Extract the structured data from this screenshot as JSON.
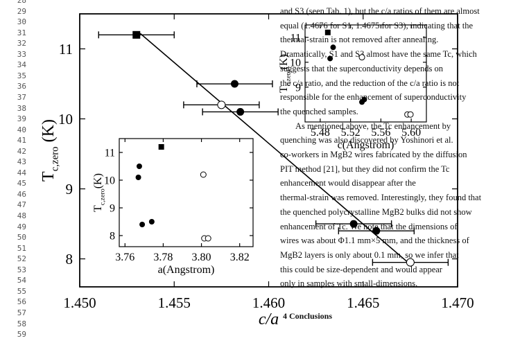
{
  "line_numbers": [
    "28",
    "29",
    "30",
    "31",
    "32",
    "33",
    "34",
    "35",
    "36",
    "37",
    "38",
    "39",
    "40",
    "41",
    "42",
    "43",
    "44",
    "45",
    "46",
    "47",
    "48",
    "49",
    "50",
    "51",
    "52",
    "53",
    "54",
    "55",
    "56",
    "57",
    "58",
    "59"
  ],
  "background_text": {
    "lines": [
      "and S3 (seen Tab. 1), but the c/a ratios of them are almost",
      "equal (1.4676 for S1, 1.4675 for S3), indicating that the",
      "thermal-strain is not removed after annealing.",
      "Dramatically, S1 and S3 almost have the same Tc, which",
      "suggests that the superconductivity depends on",
      "the c/a ratio, and the reduction of the c/a ratio is not",
      "responsible for the enhancement of superconductivity",
      "the quenched samples.",
      "As mentioned above, the Tc enhancement by",
      "quenching was also discovered by Yoshinori et al.",
      "co-workers in MgB2 wires fabricated by the diffusion",
      "PIT method [21], but they did not confirm the Tc",
      "enhancement would disappear after the",
      "thermal-strain was removed. Interestingly, they found that",
      "the quenched polycrystalline MgB2 bulks did not show",
      "enhancement of Tc. We note that the dimensions of",
      "wires was about Φ1.1 mm×5 mm, and the thickness of",
      "MgB2 layers is only about 0.1 mm, so we infer that",
      "this could be size-dependent and would appear",
      "only in samples with small-dimensions."
    ],
    "heading": "4 Conclusions"
  },
  "chart_data": [
    {
      "type": "scatter",
      "xlabel": "c/a",
      "ylabel": "T",
      "ylabel_sub": "c,zero",
      "ylabel_unit": " (K)",
      "xlim": [
        1.45,
        1.47
      ],
      "ylim": [
        7.6,
        11.5
      ],
      "xticks": [
        1.45,
        1.455,
        1.46,
        1.465,
        1.47
      ],
      "xtick_labels": [
        "1.450",
        "1.455",
        "1.460",
        "1.465",
        "1.470"
      ],
      "yticks": [
        8,
        9,
        10,
        11
      ],
      "ytick_labels": [
        "8",
        "9",
        "10",
        "11"
      ],
      "grid": false,
      "points": [
        {
          "x": 1.453,
          "y": 11.2,
          "xerr": 0.002,
          "marker": "square-filled"
        },
        {
          "x": 1.4582,
          "y": 10.5,
          "xerr": 0.002,
          "marker": "circle-filled"
        },
        {
          "x": 1.4575,
          "y": 10.2,
          "xerr": 0.002,
          "marker": "circle-open"
        },
        {
          "x": 1.4585,
          "y": 10.1,
          "xerr": 0.002,
          "marker": "circle-filled"
        },
        {
          "x": 1.4645,
          "y": 8.5,
          "xerr": 0.002,
          "marker": "circle-filled"
        },
        {
          "x": 1.4657,
          "y": 8.4,
          "xerr": 0.002,
          "marker": "circle-filled"
        },
        {
          "x": 1.4675,
          "y": 7.95,
          "xerr": 0.002,
          "marker": "circle-open"
        }
      ],
      "fit_line": {
        "x": [
          1.4532,
          1.4675
        ],
        "y": [
          11.22,
          7.92
        ]
      }
    },
    {
      "type": "scatter",
      "xlabel": "a(Angstrom)",
      "ylabel": "T",
      "ylabel_sub": "c,zero",
      "ylabel_unit": "(K)",
      "xlim": [
        3.757,
        3.827
      ],
      "ylim": [
        7.6,
        11.5
      ],
      "xticks": [
        3.76,
        3.78,
        3.8,
        3.82
      ],
      "xtick_labels": [
        "3.76",
        "3.78",
        "3.80",
        "3.82"
      ],
      "yticks": [
        8,
        9,
        10,
        11
      ],
      "ytick_labels": [
        "8",
        "9",
        "10",
        "11"
      ],
      "grid": false,
      "points": [
        {
          "x": 3.779,
          "y": 11.2,
          "marker": "square-filled"
        },
        {
          "x": 3.7675,
          "y": 10.5,
          "marker": "circle-filled"
        },
        {
          "x": 3.767,
          "y": 10.1,
          "marker": "circle-filled"
        },
        {
          "x": 3.801,
          "y": 10.2,
          "marker": "circle-open"
        },
        {
          "x": 3.769,
          "y": 8.4,
          "marker": "circle-filled"
        },
        {
          "x": 3.774,
          "y": 8.5,
          "marker": "circle-filled"
        },
        {
          "x": 3.8015,
          "y": 7.9,
          "marker": "circle-open"
        },
        {
          "x": 3.8035,
          "y": 7.9,
          "marker": "circle-open"
        }
      ]
    },
    {
      "type": "scatter",
      "xlabel": "c(Angstrom)",
      "ylabel": "T",
      "ylabel_sub": "c,zero",
      "ylabel_unit": "(K)",
      "xlim": [
        5.46,
        5.62
      ],
      "ylim": [
        7.6,
        11.5
      ],
      "xticks": [
        5.48,
        5.52,
        5.56,
        5.6
      ],
      "xtick_labels": [
        "5.48",
        "5.52",
        "5.56",
        "5.60"
      ],
      "yticks": [
        9,
        10,
        11
      ],
      "ytick_labels": [
        "9",
        "10",
        "11"
      ],
      "grid": false,
      "points": [
        {
          "x": 5.49,
          "y": 11.2,
          "marker": "square-filled"
        },
        {
          "x": 5.497,
          "y": 10.6,
          "marker": "circle-filled"
        },
        {
          "x": 5.493,
          "y": 10.15,
          "marker": "circle-filled"
        },
        {
          "x": 5.535,
          "y": 10.2,
          "marker": "circle-open"
        },
        {
          "x": 5.535,
          "y": 8.4,
          "marker": "circle-filled"
        },
        {
          "x": 5.538,
          "y": 8.5,
          "marker": "circle-filled"
        },
        {
          "x": 5.595,
          "y": 7.9,
          "marker": "circle-open"
        },
        {
          "x": 5.599,
          "y": 7.9,
          "marker": "circle-open"
        }
      ]
    }
  ]
}
